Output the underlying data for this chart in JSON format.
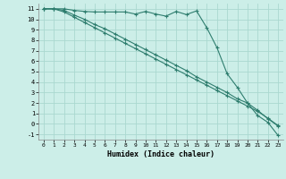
{
  "xlabel": "Humidex (Indice chaleur)",
  "bg_color": "#cceee8",
  "grid_color": "#aad8d0",
  "line_color": "#2e7d6e",
  "xlim": [
    -0.5,
    23.5
  ],
  "ylim": [
    -1.5,
    11.5
  ],
  "xticks": [
    0,
    1,
    2,
    3,
    4,
    5,
    6,
    7,
    8,
    9,
    10,
    11,
    12,
    13,
    14,
    15,
    16,
    17,
    18,
    19,
    20,
    21,
    22,
    23
  ],
  "yticks": [
    -1,
    0,
    1,
    2,
    3,
    4,
    5,
    6,
    7,
    8,
    9,
    10,
    11
  ],
  "line1_x": [
    0,
    1,
    2,
    3,
    4,
    5,
    6,
    7,
    8,
    9,
    10,
    11,
    12,
    13,
    14,
    15,
    16,
    17,
    18,
    19,
    20,
    21,
    22,
    23
  ],
  "line1_y": [
    11,
    11,
    11,
    10.85,
    10.75,
    10.7,
    10.7,
    10.7,
    10.7,
    10.5,
    10.75,
    10.5,
    10.3,
    10.75,
    10.45,
    10.8,
    9.2,
    7.3,
    4.8,
    3.5,
    2.0,
    0.8,
    0.15,
    -1.1
  ],
  "line2_x": [
    0,
    1,
    2,
    3,
    4,
    5,
    6,
    7,
    8,
    9,
    10,
    11,
    12,
    13,
    14,
    15,
    16,
    17,
    18,
    19,
    20,
    21,
    22,
    23
  ],
  "line2_y": [
    11,
    11,
    10.85,
    10.4,
    10.0,
    9.5,
    9.1,
    8.6,
    8.1,
    7.6,
    7.1,
    6.6,
    6.1,
    5.6,
    5.1,
    4.5,
    4.0,
    3.5,
    3.0,
    2.4,
    2.0,
    1.3,
    0.5,
    -0.2
  ],
  "line3_x": [
    0,
    1,
    2,
    3,
    4,
    5,
    6,
    7,
    8,
    9,
    10,
    11,
    12,
    13,
    14,
    15,
    16,
    17,
    18,
    19,
    20,
    21,
    22,
    23
  ],
  "line3_y": [
    11,
    11,
    10.7,
    10.2,
    9.7,
    9.2,
    8.7,
    8.2,
    7.7,
    7.2,
    6.7,
    6.2,
    5.7,
    5.2,
    4.7,
    4.2,
    3.7,
    3.2,
    2.7,
    2.2,
    1.7,
    1.2,
    0.55,
    -0.15
  ]
}
